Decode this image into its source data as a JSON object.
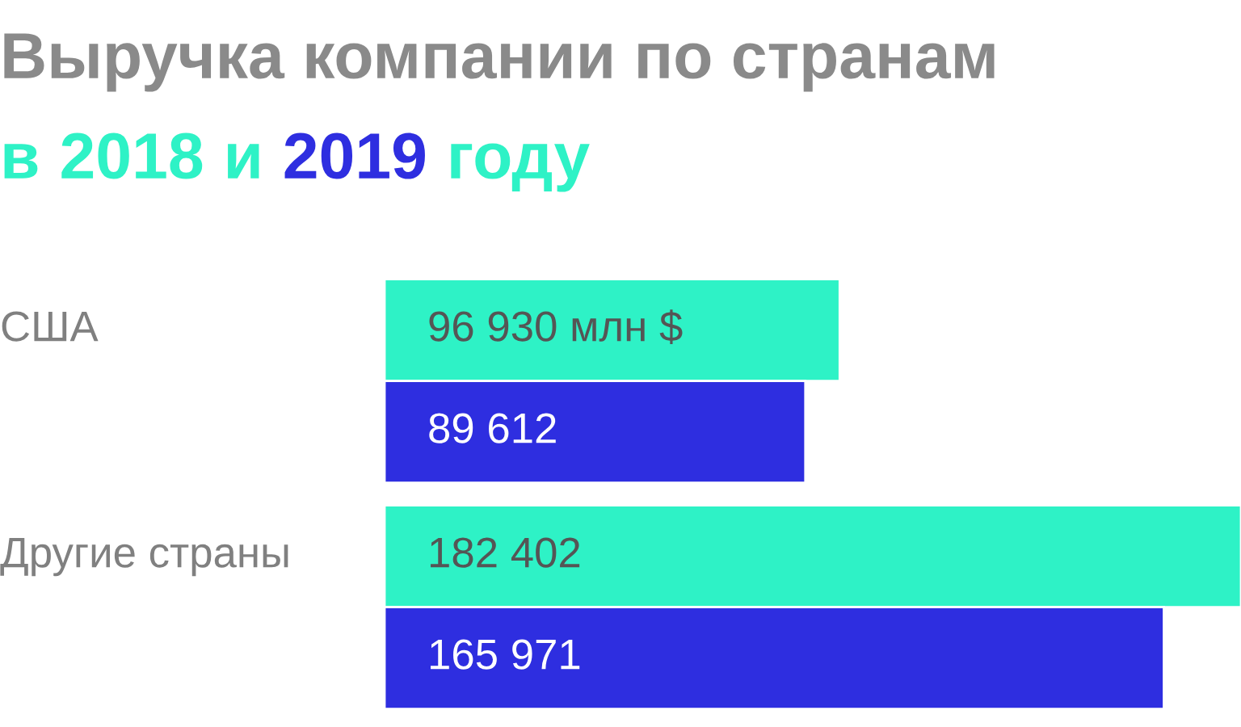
{
  "chart_data": {
    "type": "bar",
    "orientation": "horizontal",
    "title": "Выручка компании по странам",
    "annotations": [
      "в",
      "и",
      "году"
    ],
    "categories": [
      "США",
      "Другие страны"
    ],
    "series": [
      {
        "name": "2018",
        "color": "#2ef2c6",
        "values": [
          96930,
          182402
        ],
        "value_labels": [
          "96 930 млн $",
          "182 402"
        ]
      },
      {
        "name": "2019",
        "color": "#2e2ee0",
        "values": [
          89612,
          165971
        ],
        "value_labels": [
          "89 612",
          "165 971"
        ]
      }
    ],
    "legend": false
  }
}
